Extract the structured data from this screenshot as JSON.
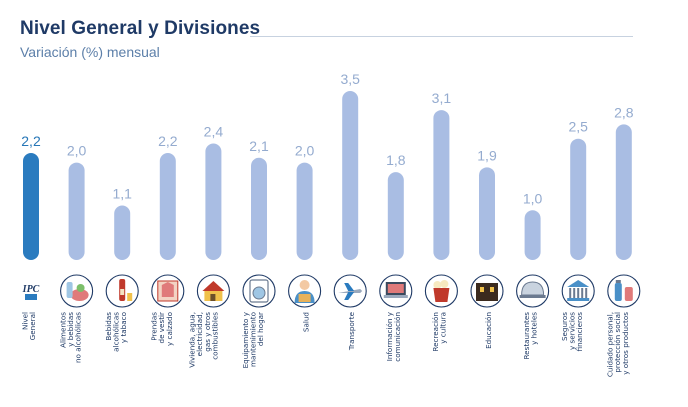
{
  "header": {
    "title": "Nivel General y Divisiones",
    "subtitle": "Variación (%) mensual"
  },
  "chart_data": {
    "type": "bar",
    "title": "Nivel General y Divisiones",
    "subtitle": "Variación (%) mensual",
    "ylabel": "Variación (%) mensual",
    "ylim": [
      0,
      3.5
    ],
    "grid": false,
    "categories": [
      [
        "Nivel",
        "General"
      ],
      [
        "Alimentos",
        "y bebidas",
        "no alcohólicas"
      ],
      [
        "Bebidas",
        "alcohólicas",
        "y tabaco"
      ],
      [
        "Prendas",
        "de vestir",
        "y calzado"
      ],
      [
        "Vivienda, agua,",
        "electricidad,",
        "gas y otros",
        "combustibles"
      ],
      [
        "Equipamiento y",
        "mantenimiento",
        "del hogar"
      ],
      [
        "Salud"
      ],
      [
        "Transporte"
      ],
      [
        "Información y",
        "comunicación"
      ],
      [
        "Recreación",
        "y cultura"
      ],
      [
        "Educación"
      ],
      [
        "Restaurantes",
        "y hoteles"
      ],
      [
        "Seguros",
        "y servicios",
        "financieros"
      ],
      [
        "Cuidado personal,",
        "protección social",
        "y otros productos"
      ]
    ],
    "values": [
      2.2,
      2.0,
      1.1,
      2.2,
      2.4,
      2.1,
      2.0,
      3.5,
      1.8,
      3.1,
      1.9,
      1.0,
      2.5,
      2.8
    ],
    "value_labels": [
      "2,2",
      "2,0",
      "1,1",
      "2,2",
      "2,4",
      "2,1",
      "2,0",
      "3,5",
      "1,8",
      "3,1",
      "1,9",
      "1,0",
      "2,5",
      "2,8"
    ],
    "icons": [
      "ipc-logo-icon",
      "food-icon",
      "beverage-icon",
      "clothing-icon",
      "house-icon",
      "washing-machine-icon",
      "doctor-icon",
      "airplane-icon",
      "laptop-icon",
      "popcorn-icon",
      "school-icon",
      "cloche-icon",
      "bank-icon",
      "personal-care-icon"
    ],
    "colors": {
      "highlight": "#2a7bbf",
      "bar": "#a9bde3",
      "value_text": "#94abcf",
      "highlight_text": "#2676b7"
    }
  }
}
